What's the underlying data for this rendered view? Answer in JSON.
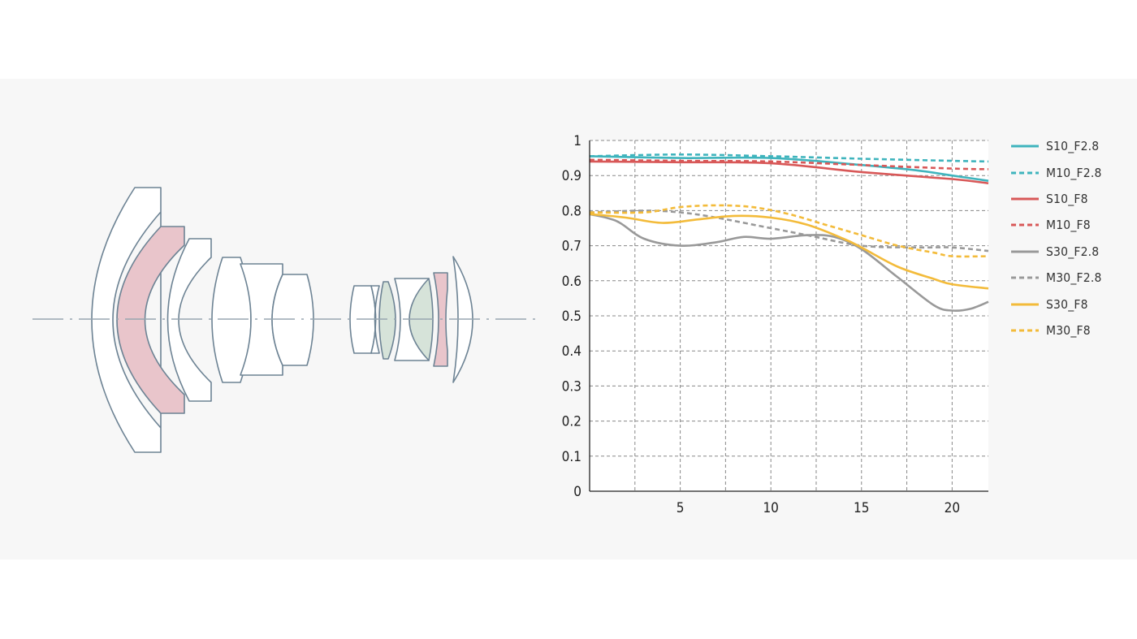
{
  "colors": {
    "teal": "#3fb4bd",
    "red": "#d85858",
    "gray": "#999999",
    "yellow": "#f3bb3a",
    "lens_outline": "#6d8394",
    "ed_element": "#e9c5cb",
    "aspherical_element": "#d6e3d9",
    "grid": "#888888"
  },
  "lens_diagram": {
    "optical_axis": "dash-dot",
    "element_fills": [
      "white",
      "pink",
      "light-green"
    ]
  },
  "chart_data": {
    "type": "line",
    "title": "",
    "xlabel": "",
    "ylabel": "",
    "xlim": [
      0,
      22
    ],
    "ylim": [
      0,
      1
    ],
    "xticks": [
      5,
      10,
      15,
      20
    ],
    "xtick_labels": [
      "5",
      "10",
      "15",
      "20"
    ],
    "yticks": [
      0,
      0.1,
      0.2,
      0.3,
      0.4,
      0.5,
      0.6,
      0.7,
      0.8,
      0.9,
      1
    ],
    "ytick_labels": [
      "0",
      "0.1",
      "0.2",
      "0.3",
      "0.4",
      "0.5",
      "0.6",
      "0.7",
      "0.8",
      "0.9",
      "1"
    ],
    "grid": true,
    "grid_style": "dashed",
    "legend_position": "right",
    "series": [
      {
        "name": "S10_F2.8",
        "color": "#3fb4bd",
        "dash": "solid",
        "x": [
          0,
          5,
          10,
          15,
          18,
          20,
          22
        ],
        "y": [
          0.955,
          0.95,
          0.95,
          0.93,
          0.915,
          0.9,
          0.885
        ]
      },
      {
        "name": "M10_F2.8",
        "color": "#3fb4bd",
        "dash": "dashed",
        "x": [
          0,
          5,
          10,
          15,
          20,
          22
        ],
        "y": [
          0.955,
          0.96,
          0.955,
          0.948,
          0.942,
          0.94
        ]
      },
      {
        "name": "S10_F8",
        "color": "#d85858",
        "dash": "solid",
        "x": [
          0,
          5,
          10,
          15,
          20,
          22
        ],
        "y": [
          0.94,
          0.938,
          0.935,
          0.91,
          0.89,
          0.878
        ]
      },
      {
        "name": "M10_F8",
        "color": "#d85858",
        "dash": "dashed",
        "x": [
          0,
          5,
          10,
          15,
          20,
          22
        ],
        "y": [
          0.945,
          0.942,
          0.94,
          0.93,
          0.92,
          0.918
        ]
      },
      {
        "name": "S30_F2.8",
        "color": "#999999",
        "dash": "solid",
        "x": [
          0,
          1.5,
          3,
          5,
          7,
          8.5,
          10,
          12,
          13.5,
          15,
          17,
          19,
          20,
          21,
          22
        ],
        "y": [
          0.79,
          0.77,
          0.72,
          0.7,
          0.71,
          0.725,
          0.72,
          0.73,
          0.725,
          0.69,
          0.61,
          0.53,
          0.515,
          0.52,
          0.54
        ]
      },
      {
        "name": "M30_F2.8",
        "color": "#999999",
        "dash": "dashed",
        "x": [
          0,
          3,
          5,
          7,
          10,
          12,
          15,
          18,
          20,
          22
        ],
        "y": [
          0.795,
          0.8,
          0.795,
          0.78,
          0.75,
          0.73,
          0.7,
          0.695,
          0.695,
          0.685
        ]
      },
      {
        "name": "S30_F8",
        "color": "#f3bb3a",
        "dash": "solid",
        "x": [
          0,
          2,
          4,
          6,
          8,
          10,
          12,
          14,
          15,
          17,
          19,
          20,
          22
        ],
        "y": [
          0.79,
          0.78,
          0.765,
          0.775,
          0.785,
          0.78,
          0.76,
          0.72,
          0.695,
          0.64,
          0.605,
          0.59,
          0.578
        ]
      },
      {
        "name": "M30_F8",
        "color": "#f3bb3a",
        "dash": "dashed",
        "x": [
          0,
          3,
          5,
          7,
          9,
          11,
          13,
          15,
          17,
          19,
          20,
          22
        ],
        "y": [
          0.795,
          0.795,
          0.81,
          0.815,
          0.81,
          0.79,
          0.76,
          0.73,
          0.7,
          0.68,
          0.67,
          0.67
        ]
      }
    ]
  }
}
